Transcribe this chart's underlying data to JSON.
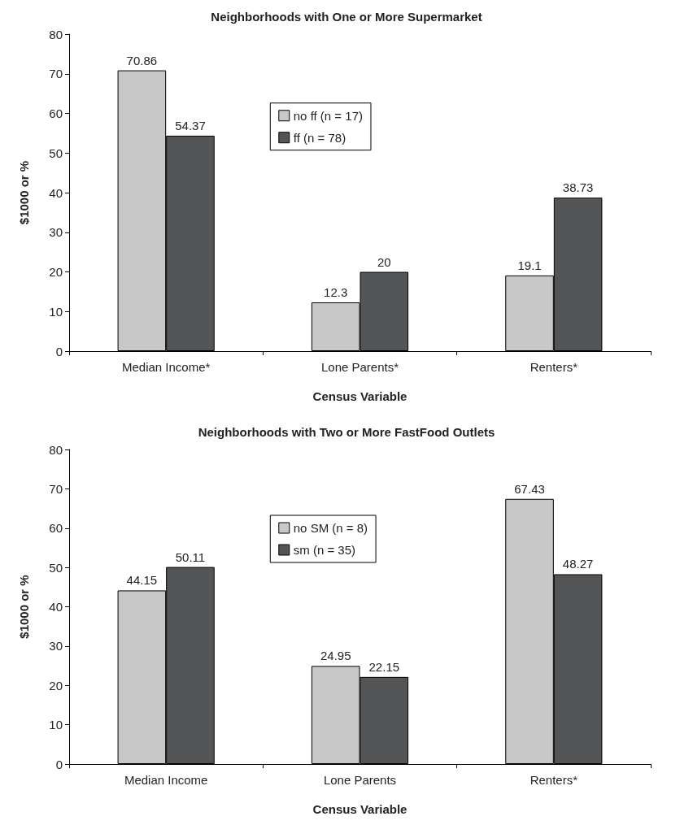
{
  "chart_data": [
    {
      "type": "bar",
      "title": "Neighborhoods with One or More Supermarket",
      "xlabel": "Census Variable",
      "ylabel": "$1000 or %",
      "categories": [
        "Median Income*",
        "Lone Parents*",
        "Renters*"
      ],
      "series": [
        {
          "name": "no ff (n = 17)",
          "color": "#c8c8c8",
          "values": [
            70.86,
            12.3,
            19.1
          ]
        },
        {
          "name": "ff (n = 78)",
          "color": "#545557",
          "values": [
            54.37,
            20,
            38.73
          ]
        }
      ],
      "ylim": [
        0,
        80
      ],
      "yticks": [
        0,
        10,
        20,
        30,
        40,
        50,
        60,
        70,
        80
      ],
      "grid": false,
      "legend": "center",
      "data_labels": true
    },
    {
      "type": "bar",
      "title": "Neighborhoods with Two or More FastFood Outlets",
      "xlabel": "Census Variable",
      "ylabel": "$1000 or %",
      "categories": [
        "Median Income",
        "Lone Parents",
        "Renters*"
      ],
      "series": [
        {
          "name": "no SM (n = 8)",
          "color": "#c8c8c8",
          "values": [
            44.15,
            24.95,
            67.43
          ]
        },
        {
          "name": "sm (n = 35)",
          "color": "#545557",
          "values": [
            50.11,
            22.15,
            48.27
          ]
        }
      ],
      "ylim": [
        0,
        80
      ],
      "yticks": [
        0,
        10,
        20,
        30,
        40,
        50,
        60,
        70,
        80
      ],
      "grid": false,
      "legend": "center",
      "data_labels": true
    }
  ]
}
